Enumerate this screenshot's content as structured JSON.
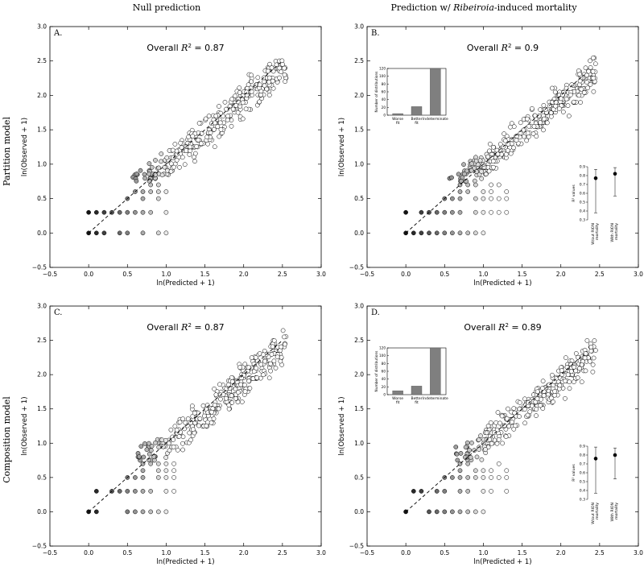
{
  "column_titles": {
    "left": "Null prediction",
    "right_prefix": "Prediction w/ ",
    "right_italic": "Ribeiroia",
    "right_suffix": "-induced mortality"
  },
  "row_titles": {
    "top": "Partition model",
    "bottom": "Composition model"
  },
  "axes": {
    "xlabel": "ln(Predicted + 1)",
    "ylabel": "ln(Observed + 1)",
    "xlim": [
      -0.5,
      3.0
    ],
    "ylim": [
      -0.5,
      3.0
    ],
    "xticks": [
      "−0.5",
      "0.0",
      "0.5",
      "1.0",
      "1.5",
      "2.0",
      "2.5",
      "3.0"
    ],
    "yticks": [
      "−0.5",
      "0.0",
      "0.5",
      "1.0",
      "1.5",
      "2.0",
      "2.5",
      "3.0"
    ],
    "xtick_values": [
      -0.5,
      0,
      0.5,
      1.0,
      1.5,
      2.0,
      2.5,
      3.0
    ],
    "ytick_values": [
      -0.5,
      0,
      0.5,
      1.0,
      1.5,
      2.0,
      2.5,
      3.0
    ]
  },
  "inset_labels": {
    "bar_ylabel": "Number of distributions",
    "bar_yticks": [
      "0",
      "20",
      "40",
      "60",
      "80",
      "100",
      "120"
    ],
    "bar_ytick_values": [
      0,
      20,
      40,
      60,
      80,
      100,
      120
    ],
    "bar_categories": [
      [
        "Worse",
        "fit"
      ],
      [
        "Better",
        "fit"
      ],
      [
        "Indeterminate"
      ]
    ],
    "r2_ylabel": "R² values",
    "r2_yticks": [
      "0.3",
      "0.4",
      "0.5",
      "0.6",
      "0.7",
      "0.8",
      "0.9"
    ],
    "r2_ytick_values": [
      0.3,
      0.4,
      0.5,
      0.6,
      0.7,
      0.8,
      0.9
    ],
    "r2_categories": [
      [
        "W/out RION",
        "mortality"
      ],
      [
        "With RION",
        "mortality"
      ]
    ]
  },
  "chart_data": [
    {
      "type": "scatter",
      "panel": "A.",
      "title": "Overall R² = 0.87",
      "title_prefix": "Overall ",
      "title_r2": "0.87",
      "xlabel": "ln(Predicted + 1)",
      "ylabel": "ln(Observed + 1)",
      "xlim": [
        -0.5,
        3.0
      ],
      "ylim": [
        -0.5,
        3.0
      ],
      "reference_line": {
        "style": "dashed",
        "slope": 1,
        "intercept": 0,
        "x_range": [
          0,
          2.5
        ]
      },
      "cloud": {
        "seed": 11,
        "n": 380,
        "x_range": [
          0.0,
          2.55
        ],
        "spread": 0.12
      },
      "discrete_rows": {
        "y_levels": [
          0,
          0.3,
          0.5,
          0.6,
          0.7
        ],
        "x_min": 0.0,
        "x_max": 1.0
      }
    },
    {
      "type": "scatter",
      "panel": "B.",
      "title": "Overall R² = 0.9",
      "title_prefix": "Overall ",
      "title_r2": "0.9",
      "xlabel": "ln(Predicted + 1)",
      "ylabel": "ln(Observed + 1)",
      "xlim": [
        -0.5,
        3.0
      ],
      "ylim": [
        -0.5,
        3.0
      ],
      "reference_line": {
        "style": "dashed",
        "slope": 1,
        "intercept": 0,
        "x_range": [
          0,
          2.3
        ]
      },
      "cloud": {
        "seed": 23,
        "n": 380,
        "x_range": [
          0.0,
          2.45
        ],
        "spread": 0.11
      },
      "discrete_rows": {
        "y_levels": [
          0,
          0.3,
          0.5,
          0.6,
          0.7
        ],
        "x_min": 0.0,
        "x_max": 1.3
      },
      "inset_bar": {
        "type": "bar",
        "categories": [
          "Worse fit",
          "Better fit",
          "Indeterminate"
        ],
        "values": [
          4,
          22,
          120
        ],
        "ylim": [
          0,
          120
        ]
      },
      "inset_r2": {
        "type": "errorbar",
        "categories": [
          "W/out RION mortality",
          "With RION mortality"
        ],
        "means": [
          0.77,
          0.82
        ],
        "lower": [
          0.38,
          0.57
        ],
        "upper": [
          0.87,
          0.89
        ],
        "ylim": [
          0.3,
          0.9
        ]
      }
    },
    {
      "type": "scatter",
      "panel": "C.",
      "title": "Overall R² = 0.87",
      "title_prefix": "Overall ",
      "title_r2": "0.87",
      "xlabel": "ln(Predicted + 1)",
      "ylabel": "ln(Observed + 1)",
      "xlim": [
        -0.5,
        3.0
      ],
      "ylim": [
        -0.5,
        3.0
      ],
      "reference_line": {
        "style": "dashed",
        "slope": 1,
        "intercept": 0,
        "x_range": [
          0,
          2.5
        ]
      },
      "cloud": {
        "seed": 37,
        "n": 380,
        "x_range": [
          0.0,
          2.55
        ],
        "spread": 0.12
      },
      "discrete_rows": {
        "y_levels": [
          0,
          0.3,
          0.5,
          0.6,
          0.7
        ],
        "x_min": 0.0,
        "x_max": 1.1
      }
    },
    {
      "type": "scatter",
      "panel": "D.",
      "title": "Overall R² = 0.89",
      "title_prefix": "Overall ",
      "title_r2": "0.89",
      "xlabel": "ln(Predicted + 1)",
      "ylabel": "ln(Observed + 1)",
      "xlim": [
        -0.5,
        3.0
      ],
      "ylim": [
        -0.5,
        3.0
      ],
      "reference_line": {
        "style": "dashed",
        "slope": 1,
        "intercept": 0,
        "x_range": [
          0,
          2.3
        ]
      },
      "cloud": {
        "seed": 53,
        "n": 380,
        "x_range": [
          0.0,
          2.45
        ],
        "spread": 0.11
      },
      "discrete_rows": {
        "y_levels": [
          0,
          0.3,
          0.5,
          0.6,
          0.7
        ],
        "x_min": 0.0,
        "x_max": 1.3
      },
      "inset_bar": {
        "type": "bar",
        "categories": [
          "Worse fit",
          "Better fit",
          "Indeterminate"
        ],
        "values": [
          10,
          22,
          120
        ],
        "ylim": [
          0,
          120
        ]
      },
      "inset_r2": {
        "type": "errorbar",
        "categories": [
          "W/out RION mortality",
          "With RION mortality"
        ],
        "means": [
          0.76,
          0.8
        ],
        "lower": [
          0.37,
          0.53
        ],
        "upper": [
          0.89,
          0.88
        ],
        "ylim": [
          0.3,
          0.9
        ]
      }
    }
  ]
}
